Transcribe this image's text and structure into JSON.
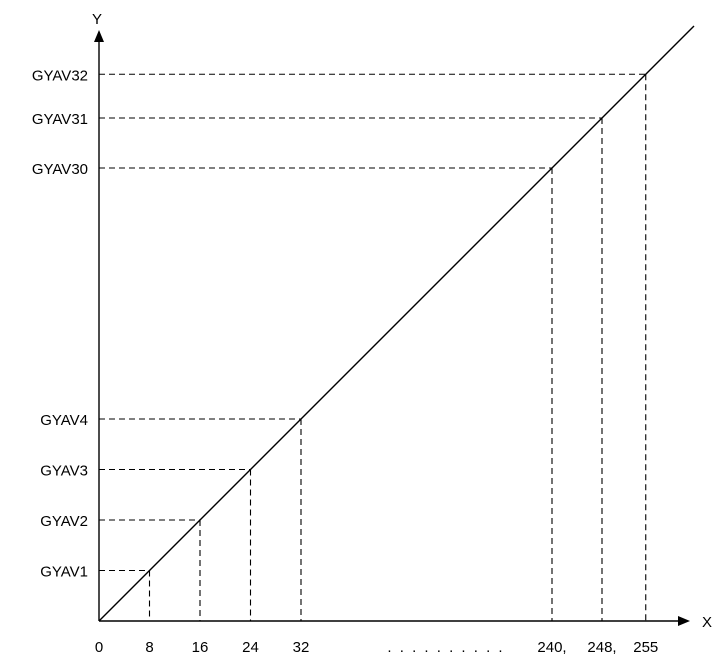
{
  "chart_data": {
    "type": "line",
    "axes": {
      "x_label": "X",
      "y_label": "Y",
      "origin_label": "0"
    },
    "x_ellipsis": ". . . . . . . . . .",
    "points_low": [
      {
        "x": 8,
        "x_label": "8",
        "y_label": "GYAV1"
      },
      {
        "x": 16,
        "x_label": "16",
        "y_label": "GYAV2"
      },
      {
        "x": 24,
        "x_label": "24",
        "y_label": "GYAV3"
      },
      {
        "x": 32,
        "x_label": "32",
        "y_label": "GYAV4"
      }
    ],
    "points_high": [
      {
        "x": 240,
        "x_label": "240,",
        "y_label": "GYAV30"
      },
      {
        "x": 248,
        "x_label": "248,",
        "y_label": "GYAV31"
      },
      {
        "x": 255,
        "x_label": "255",
        "y_label": "GYAV32"
      }
    ]
  }
}
